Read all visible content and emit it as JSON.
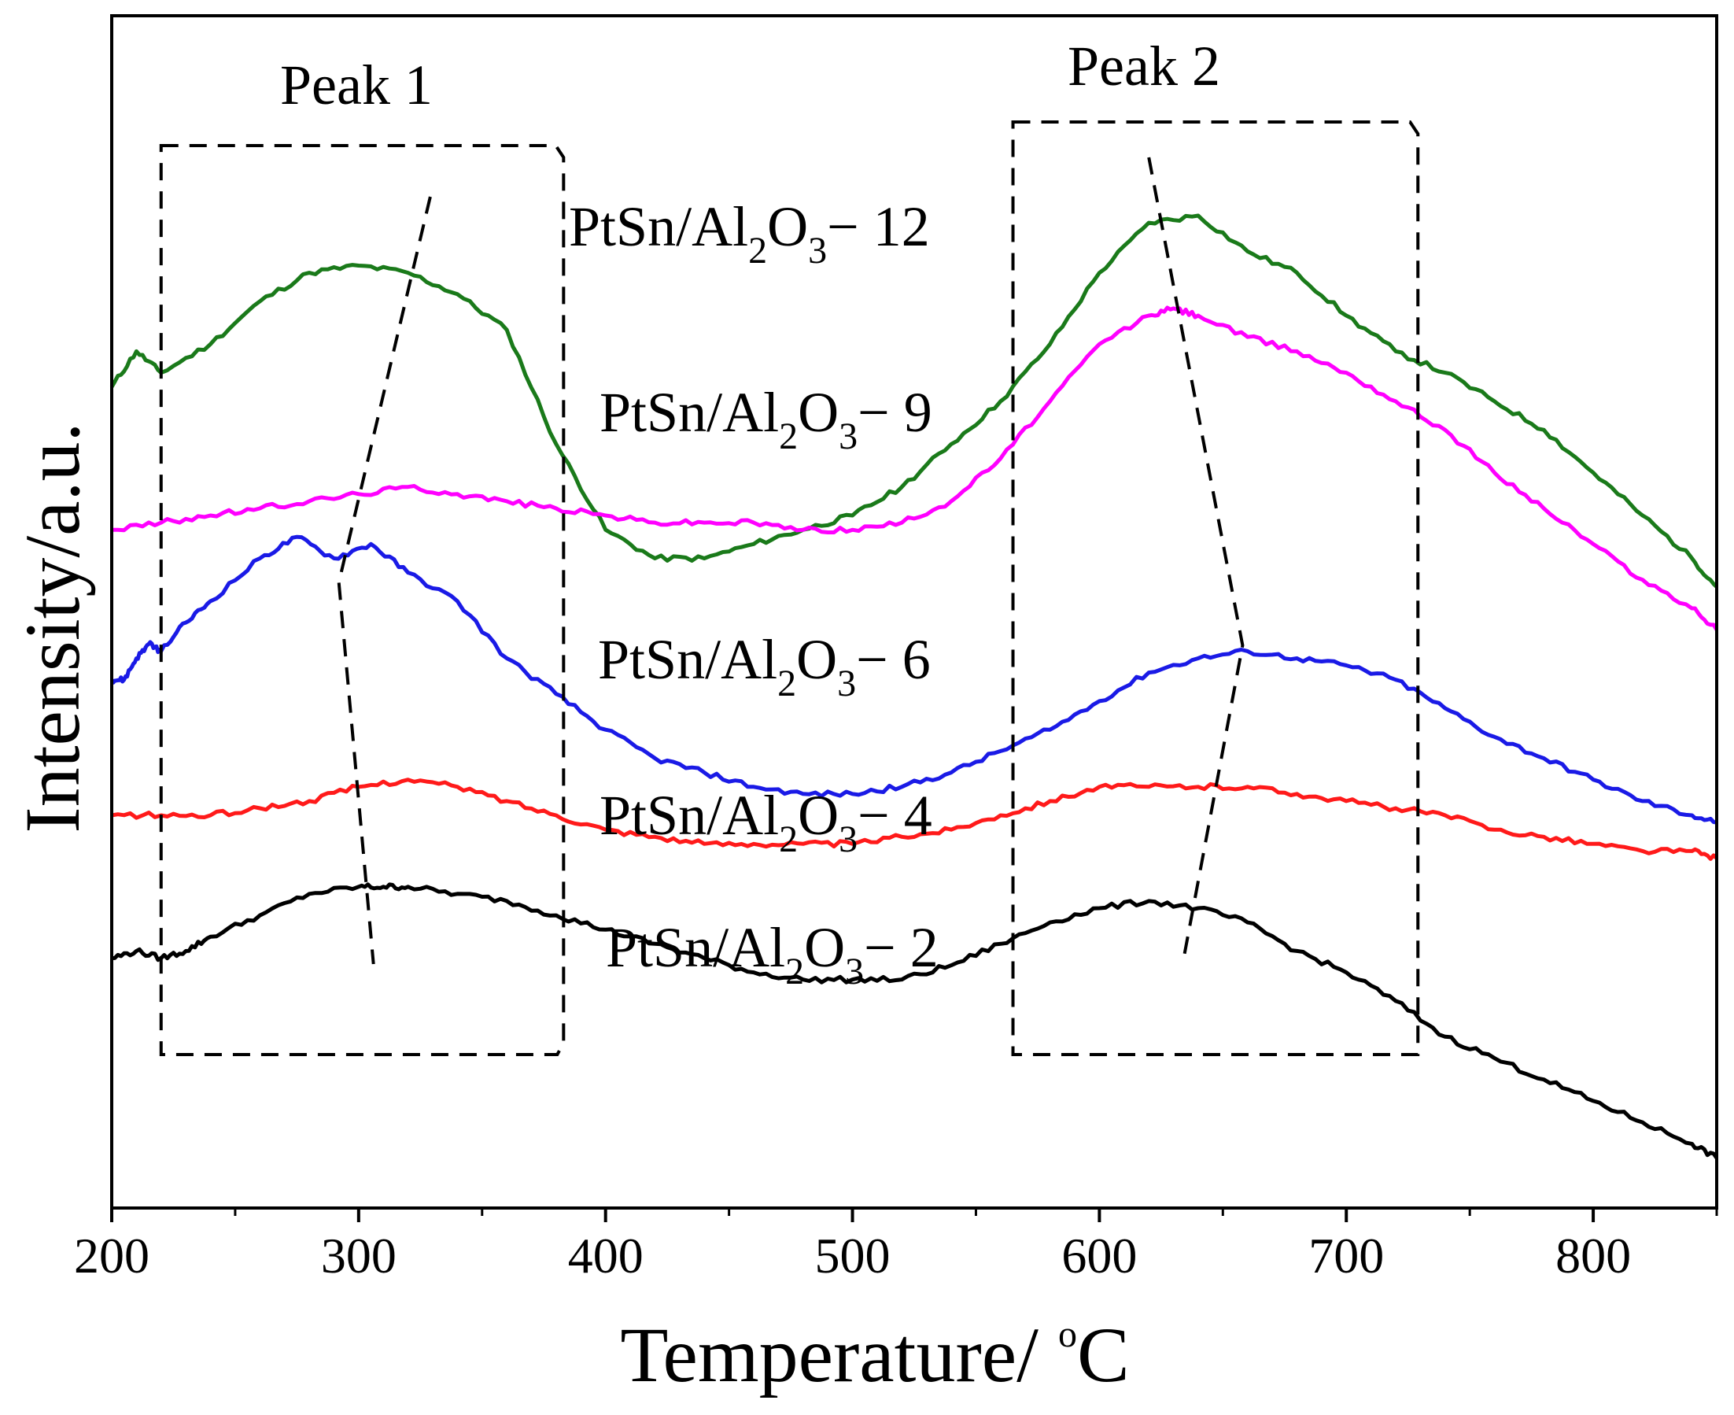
{
  "chart_data": {
    "type": "line",
    "xlabel": "Temperature/ °C",
    "xlabel_parts": {
      "main": "Temperature/ ",
      "sup": "o",
      "unit": "C"
    },
    "ylabel": "Intensity/a.u.",
    "xlim": [
      200,
      850
    ],
    "x_ticks": [
      200,
      300,
      400,
      500,
      600,
      700,
      800
    ],
    "x_ticks_minor": [
      250,
      350,
      450,
      550,
      650,
      750,
      850
    ],
    "y_ticks_shown": false,
    "grid": false,
    "legend": "none",
    "peak_labels": [
      "Peak 1",
      "Peak 2"
    ],
    "peak_boxes": [
      {
        "name": "Peak 1",
        "x_range": [
          220,
          383
        ]
      },
      {
        "name": "Peak 2",
        "x_range": [
          565,
          729
        ]
      }
    ],
    "series": [
      {
        "name": "PtSn/Al2O3 - 12",
        "label_parts": {
          "a": "PtSn/Al",
          "s1": "2",
          "b": "O",
          "s2": "3",
          "c": "− 12"
        },
        "color": "#1a7a1a",
        "x": [
          200,
          210,
          220,
          240,
          260,
          280,
          300,
          320,
          340,
          360,
          380,
          400,
          420,
          440,
          460,
          480,
          500,
          520,
          540,
          560,
          580,
          600,
          620,
          640,
          660,
          680,
          700,
          720,
          740,
          760,
          780,
          800,
          820,
          840,
          850
        ],
        "y": [
          0.9,
          0.95,
          0.92,
          0.96,
          1.02,
          1.06,
          1.07,
          1.06,
          1.03,
          0.98,
          0.82,
          0.7,
          0.66,
          0.66,
          0.68,
          0.7,
          0.72,
          0.76,
          0.82,
          0.88,
          0.96,
          1.06,
          1.13,
          1.14,
          1.09,
          1.06,
          1.0,
          0.95,
          0.92,
          0.88,
          0.84,
          0.78,
          0.72,
          0.66,
          0.62
        ]
      },
      {
        "name": "PtSn/Al2O3 - 9",
        "label_parts": {
          "a": "PtSn/Al",
          "s1": "2",
          "b": "O",
          "s2": "3",
          "c": "− 9"
        },
        "color": "#ff00ff",
        "x": [
          200,
          220,
          240,
          260,
          280,
          300,
          320,
          340,
          360,
          380,
          400,
          420,
          440,
          460,
          480,
          500,
          520,
          540,
          560,
          580,
          600,
          620,
          630,
          640,
          660,
          680,
          700,
          720,
          740,
          760,
          780,
          800,
          820,
          840,
          850
        ],
        "y": [
          0.7,
          0.71,
          0.72,
          0.73,
          0.74,
          0.75,
          0.76,
          0.75,
          0.74,
          0.73,
          0.72,
          0.71,
          0.71,
          0.71,
          0.7,
          0.7,
          0.71,
          0.74,
          0.8,
          0.88,
          0.96,
          1.0,
          1.01,
          1.0,
          0.97,
          0.95,
          0.92,
          0.88,
          0.84,
          0.78,
          0.73,
          0.68,
          0.63,
          0.59,
          0.56
        ]
      },
      {
        "name": "PtSn/Al2O3 - 6",
        "label_parts": {
          "a": "PtSn/Al",
          "s1": "2",
          "b": "O",
          "s2": "3",
          "c": "− 6"
        },
        "color": "#1a1ae6",
        "x": [
          200,
          205,
          210,
          215,
          220,
          230,
          240,
          260,
          275,
          290,
          305,
          320,
          340,
          360,
          380,
          400,
          420,
          440,
          460,
          480,
          500,
          520,
          540,
          560,
          580,
          600,
          620,
          640,
          660,
          680,
          700,
          720,
          740,
          760,
          780,
          800,
          820,
          840,
          850
        ],
        "y": [
          0.49,
          0.49,
          0.52,
          0.54,
          0.53,
          0.57,
          0.6,
          0.66,
          0.69,
          0.66,
          0.68,
          0.64,
          0.6,
          0.52,
          0.47,
          0.42,
          0.38,
          0.36,
          0.34,
          0.33,
          0.33,
          0.34,
          0.36,
          0.39,
          0.42,
          0.46,
          0.5,
          0.52,
          0.53,
          0.52,
          0.51,
          0.49,
          0.45,
          0.41,
          0.38,
          0.35,
          0.32,
          0.3,
          0.29
        ]
      },
      {
        "name": "PtSn/Al2O3 - 4",
        "label_parts": {
          "a": "PtSn/Al",
          "s1": "2",
          "b": "O",
          "s2": "3",
          "c": "− 4"
        },
        "color": "#ff1a1a",
        "x": [
          200,
          220,
          240,
          260,
          280,
          300,
          320,
          340,
          360,
          380,
          400,
          420,
          440,
          460,
          480,
          500,
          520,
          540,
          560,
          580,
          600,
          620,
          640,
          660,
          680,
          700,
          720,
          740,
          760,
          780,
          800,
          820,
          840,
          850
        ],
        "y": [
          0.3,
          0.3,
          0.3,
          0.31,
          0.32,
          0.34,
          0.35,
          0.34,
          0.32,
          0.3,
          0.28,
          0.27,
          0.26,
          0.26,
          0.26,
          0.26,
          0.27,
          0.28,
          0.3,
          0.32,
          0.34,
          0.34,
          0.34,
          0.34,
          0.33,
          0.32,
          0.31,
          0.3,
          0.28,
          0.27,
          0.26,
          0.25,
          0.25,
          0.24
        ]
      },
      {
        "name": "PtSn/Al2O3 - 2",
        "label_parts": {
          "a": "PtSn/Al",
          "s1": "2",
          "b": "O",
          "s2": "3",
          "c": "− 2"
        },
        "color": "#000000",
        "x": [
          200,
          210,
          220,
          230,
          240,
          260,
          280,
          300,
          310,
          320,
          340,
          360,
          380,
          400,
          420,
          440,
          460,
          480,
          500,
          520,
          540,
          560,
          580,
          600,
          620,
          640,
          660,
          680,
          700,
          720,
          740,
          760,
          780,
          800,
          820,
          840,
          850
        ],
        "y": [
          0.1,
          0.11,
          0.1,
          0.11,
          0.13,
          0.16,
          0.19,
          0.2,
          0.2,
          0.2,
          0.19,
          0.18,
          0.16,
          0.14,
          0.12,
          0.1,
          0.08,
          0.07,
          0.07,
          0.07,
          0.09,
          0.12,
          0.15,
          0.17,
          0.18,
          0.17,
          0.15,
          0.11,
          0.08,
          0.04,
          -0.01,
          -0.04,
          -0.07,
          -0.1,
          -0.13,
          -0.16,
          -0.18
        ]
      }
    ]
  }
}
